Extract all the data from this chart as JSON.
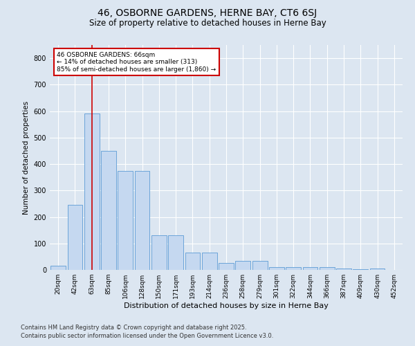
{
  "title": "46, OSBORNE GARDENS, HERNE BAY, CT6 6SJ",
  "subtitle": "Size of property relative to detached houses in Herne Bay",
  "xlabel": "Distribution of detached houses by size in Herne Bay",
  "ylabel": "Number of detached properties",
  "categories": [
    "20sqm",
    "42sqm",
    "63sqm",
    "85sqm",
    "106sqm",
    "128sqm",
    "150sqm",
    "171sqm",
    "193sqm",
    "214sqm",
    "236sqm",
    "258sqm",
    "279sqm",
    "301sqm",
    "322sqm",
    "344sqm",
    "366sqm",
    "387sqm",
    "409sqm",
    "430sqm",
    "452sqm"
  ],
  "values": [
    15,
    247,
    590,
    450,
    375,
    375,
    130,
    130,
    65,
    65,
    25,
    35,
    35,
    10,
    10,
    10,
    10,
    5,
    3,
    5,
    1
  ],
  "bar_color": "#c5d8f0",
  "bar_edge_color": "#5b9bd5",
  "background_color": "#dce6f1",
  "vline_x": 2,
  "vline_color": "#cc0000",
  "annotation_text": "46 OSBORNE GARDENS: 66sqm\n← 14% of detached houses are smaller (313)\n85% of semi-detached houses are larger (1,860) →",
  "annotation_box_color": "#ffffff",
  "annotation_box_edge": "#cc0000",
  "footer_line1": "Contains HM Land Registry data © Crown copyright and database right 2025.",
  "footer_line2": "Contains public sector information licensed under the Open Government Licence v3.0.",
  "ylim": [
    0,
    850
  ],
  "yticks": [
    0,
    100,
    200,
    300,
    400,
    500,
    600,
    700,
    800
  ],
  "title_fontsize": 10,
  "subtitle_fontsize": 8.5,
  "ylabel_fontsize": 7.5,
  "xlabel_fontsize": 8,
  "tick_fontsize": 6.5,
  "annotation_fontsize": 6.5,
  "footer_fontsize": 6
}
